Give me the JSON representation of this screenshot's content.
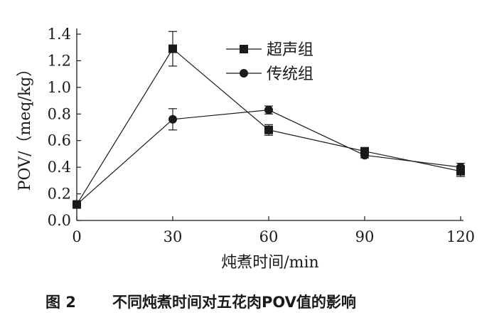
{
  "chart_data": {
    "type": "line",
    "x": [
      0,
      30,
      60,
      90,
      120
    ],
    "xlabel": "炖煮时间/min",
    "ylabel": "POV/（meq/kg）",
    "xlim": [
      0,
      120
    ],
    "ylim": [
      0,
      1.4
    ],
    "xticks": [
      "0",
      "30",
      "60",
      "90",
      "120"
    ],
    "yticks": [
      "0.0",
      "0.2",
      "0.4",
      "0.6",
      "0.8",
      "1.0",
      "1.2",
      "1.4"
    ],
    "grid": false,
    "legend_position": "top-right",
    "series": [
      {
        "name": "超声组",
        "marker": "square",
        "values": [
          0.12,
          1.29,
          0.68,
          0.52,
          0.37
        ],
        "errors": [
          0.0,
          0.13,
          0.04,
          0.02,
          0.04
        ]
      },
      {
        "name": "传统组",
        "marker": "circle",
        "values": [
          0.12,
          0.76,
          0.83,
          0.49,
          0.4
        ],
        "errors": [
          0.0,
          0.08,
          0.03,
          0.02,
          0.03
        ]
      }
    ]
  },
  "caption": {
    "figure_number": "图 2",
    "title": "不同炖煮时间对五花肉POV值的影响"
  },
  "colors": {
    "ink": "#1a1a1a",
    "background": "#ffffff"
  }
}
